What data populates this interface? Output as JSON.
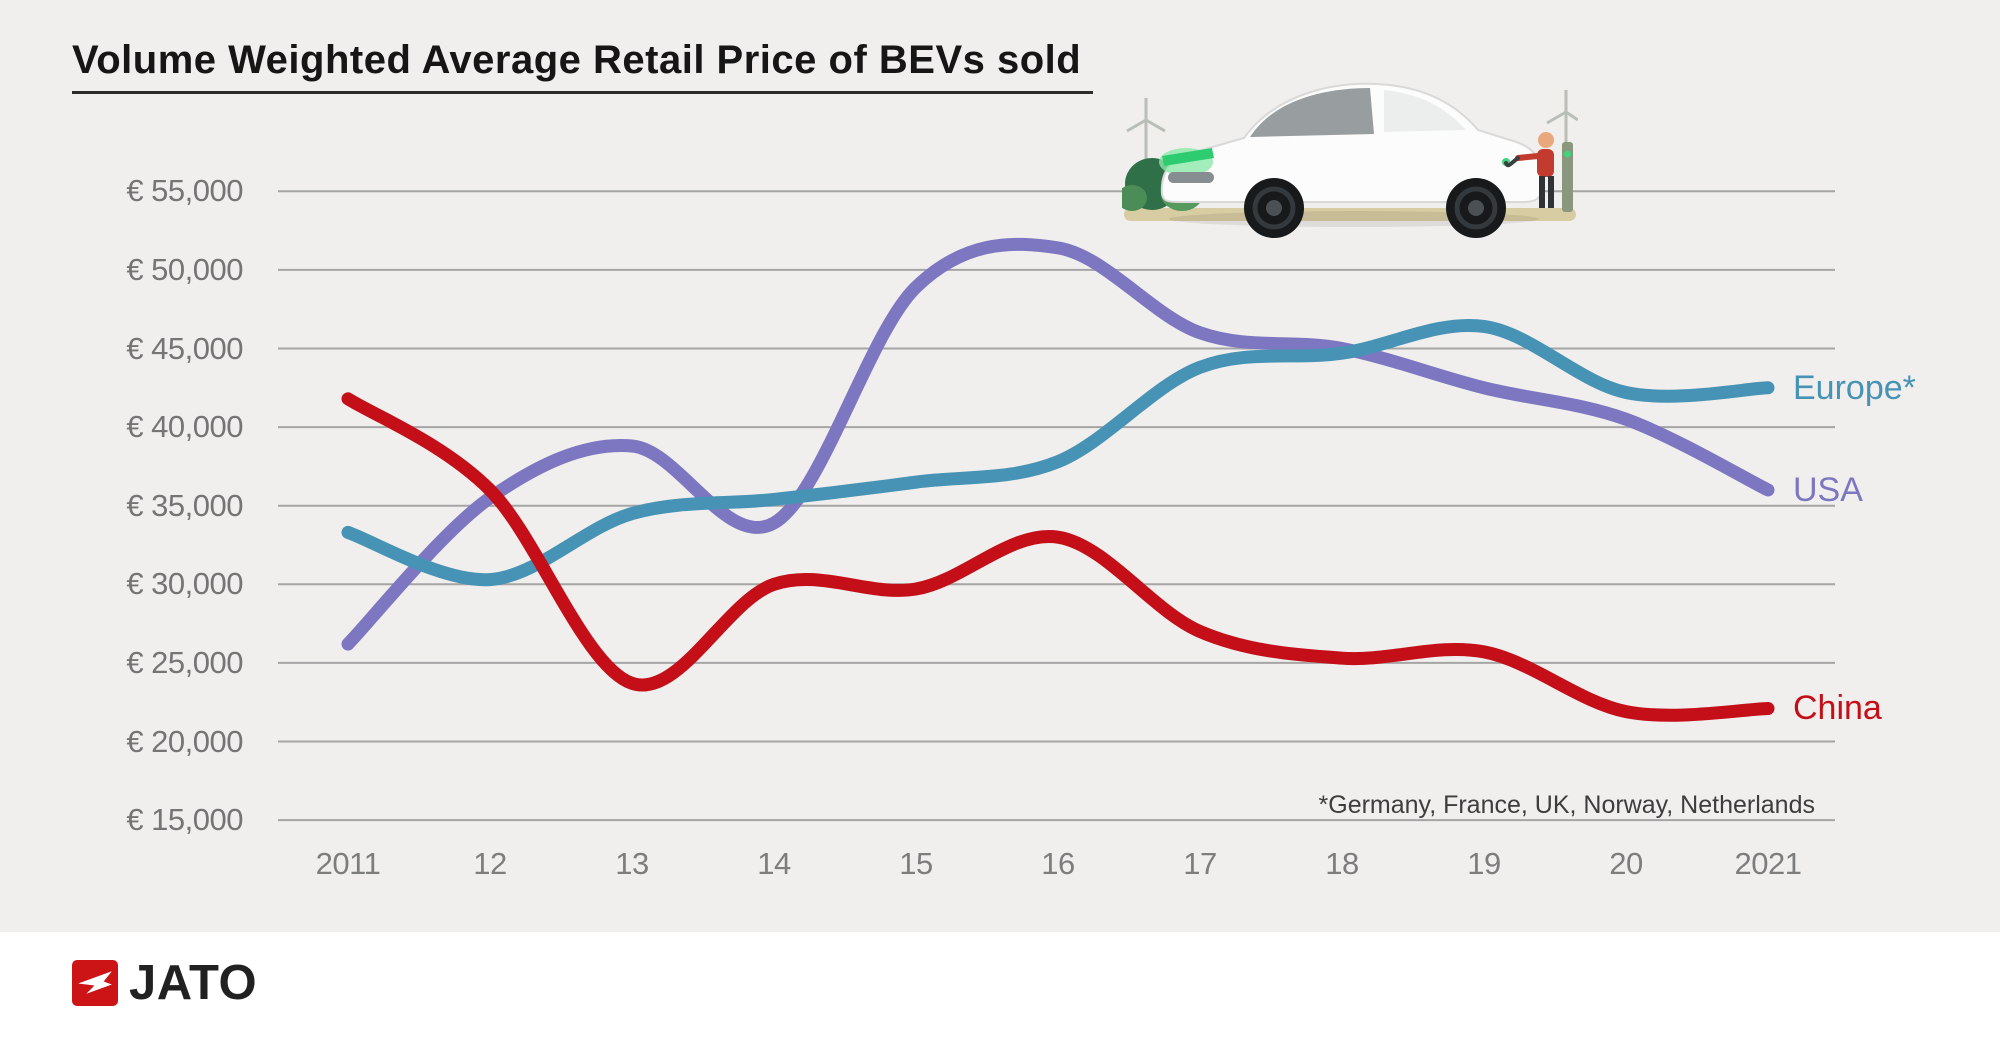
{
  "title": "Volume Weighted Average Retail Price of BEVs sold",
  "footnote": "*Germany, France, UK, Norway, Netherlands",
  "logo": {
    "text": "JATO"
  },
  "colors": {
    "background": "#f0efed",
    "grid": "#a5a5a5",
    "axis_text": "#757575",
    "title_text": "#161616",
    "footnote_text": "#3d3d3d",
    "europe": "#4793b5",
    "usa": "#7d77c1",
    "china": "#c40e18",
    "logo_red": "#cc1417"
  },
  "chart_data": {
    "type": "line",
    "title": "Volume Weighted Average Retail Price of BEVs sold",
    "xlabel": "",
    "ylabel": "",
    "x_labels": [
      "2011",
      "12",
      "13",
      "14",
      "15",
      "16",
      "17",
      "18",
      "19",
      "20",
      "2021"
    ],
    "y_tick_labels": [
      "€ 55,000",
      "€ 50,000",
      "€ 45,000",
      "€ 40,000",
      "€ 35,000",
      "€ 30,000",
      "€ 25,000",
      "€ 20,000",
      "€ 15,000"
    ],
    "y_tick_values": [
      55000,
      50000,
      45000,
      40000,
      35000,
      30000,
      25000,
      20000,
      15000
    ],
    "ylim": [
      15000,
      55000
    ],
    "grid": "horizontal",
    "legend_position": "line-end-labels-right",
    "series": [
      {
        "name": "Europe*",
        "color": "#4793b5",
        "values": [
          33300,
          30300,
          34500,
          35400,
          36500,
          37800,
          43800,
          44700,
          46400,
          42200,
          42500
        ]
      },
      {
        "name": "USA",
        "color": "#7d77c1",
        "values": [
          26200,
          35500,
          38800,
          33900,
          48900,
          51400,
          46000,
          45000,
          42500,
          40500,
          36000
        ]
      },
      {
        "name": "China",
        "color": "#c40e18",
        "values": [
          41800,
          36000,
          23700,
          30000,
          29700,
          33000,
          27000,
          25300,
          25700,
          21900,
          22100
        ]
      }
    ]
  }
}
